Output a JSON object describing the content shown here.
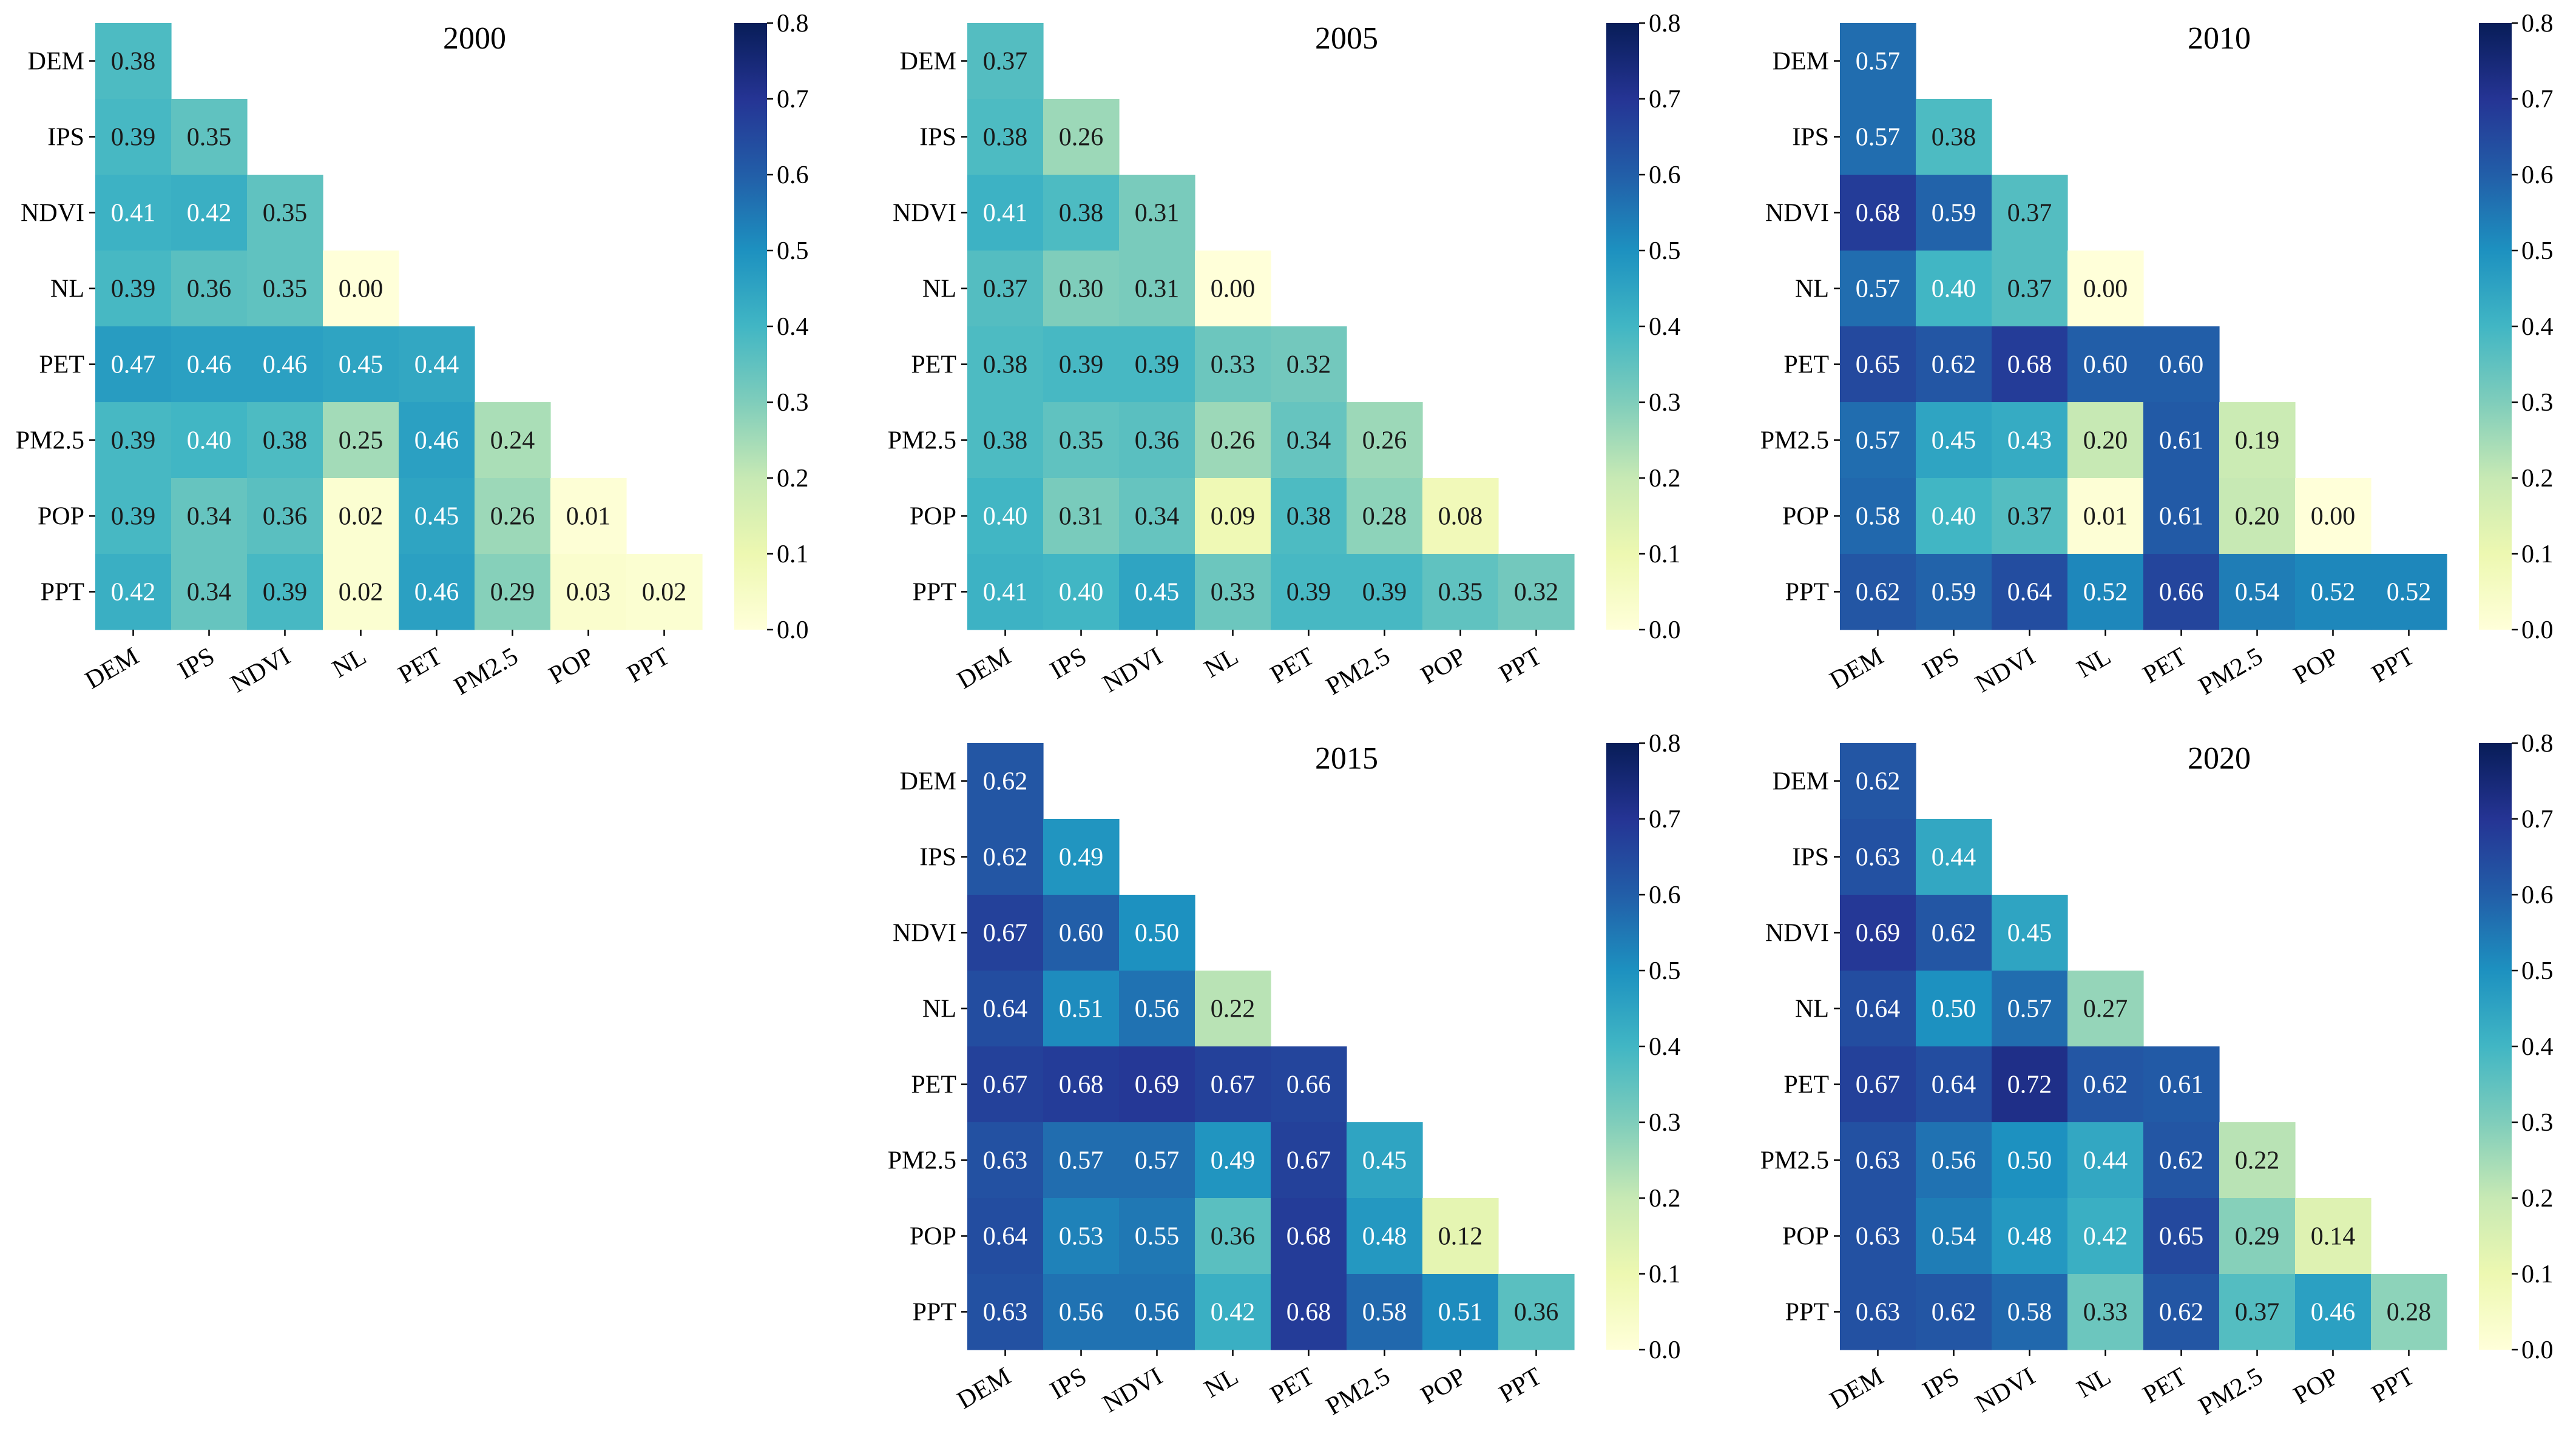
{
  "chart_data": [
    {
      "type": "heatmap",
      "title": "2000",
      "categories": [
        "DEM",
        "IPS",
        "NDVI",
        "NL",
        "PET",
        "PM2.5",
        "POP",
        "PPT"
      ],
      "values": [
        [
          0.38
        ],
        [
          0.39,
          0.35
        ],
        [
          0.41,
          0.42,
          0.35
        ],
        [
          0.39,
          0.36,
          0.35,
          0.0
        ],
        [
          0.47,
          0.46,
          0.46,
          0.45,
          0.44
        ],
        [
          0.39,
          0.4,
          0.38,
          0.25,
          0.46,
          0.24
        ],
        [
          0.39,
          0.34,
          0.36,
          0.02,
          0.45,
          0.26,
          0.01
        ],
        [
          0.42,
          0.34,
          0.39,
          0.02,
          0.46,
          0.29,
          0.03,
          0.02
        ]
      ],
      "colorbar": {
        "min": 0.0,
        "max": 0.8,
        "ticks": [
          "0.0",
          "0.1",
          "0.2",
          "0.3",
          "0.4",
          "0.5",
          "0.6",
          "0.7",
          "0.8"
        ]
      }
    },
    {
      "type": "heatmap",
      "title": "2005",
      "categories": [
        "DEM",
        "IPS",
        "NDVI",
        "NL",
        "PET",
        "PM2.5",
        "POP",
        "PPT"
      ],
      "values": [
        [
          0.37
        ],
        [
          0.38,
          0.26
        ],
        [
          0.41,
          0.38,
          0.31
        ],
        [
          0.37,
          0.3,
          0.31,
          0.0
        ],
        [
          0.38,
          0.39,
          0.39,
          0.33,
          0.32
        ],
        [
          0.38,
          0.35,
          0.36,
          0.26,
          0.34,
          0.26
        ],
        [
          0.4,
          0.31,
          0.34,
          0.09,
          0.38,
          0.28,
          0.08
        ],
        [
          0.41,
          0.4,
          0.45,
          0.33,
          0.39,
          0.39,
          0.35,
          0.32
        ]
      ],
      "colorbar": {
        "min": 0.0,
        "max": 0.8,
        "ticks": [
          "0.0",
          "0.1",
          "0.2",
          "0.3",
          "0.4",
          "0.5",
          "0.6",
          "0.7",
          "0.8"
        ]
      }
    },
    {
      "type": "heatmap",
      "title": "2010",
      "categories": [
        "DEM",
        "IPS",
        "NDVI",
        "NL",
        "PET",
        "PM2.5",
        "POP",
        "PPT"
      ],
      "values": [
        [
          0.57
        ],
        [
          0.57,
          0.38
        ],
        [
          0.68,
          0.59,
          0.37
        ],
        [
          0.57,
          0.4,
          0.37,
          0.0
        ],
        [
          0.65,
          0.62,
          0.68,
          0.6,
          0.6
        ],
        [
          0.57,
          0.45,
          0.43,
          0.2,
          0.61,
          0.19
        ],
        [
          0.58,
          0.4,
          0.37,
          0.01,
          0.61,
          0.2,
          0.0
        ],
        [
          0.62,
          0.59,
          0.64,
          0.52,
          0.66,
          0.54,
          0.52,
          0.52
        ]
      ],
      "colorbar": {
        "min": 0.0,
        "max": 0.8,
        "ticks": [
          "0.0",
          "0.1",
          "0.2",
          "0.3",
          "0.4",
          "0.5",
          "0.6",
          "0.7",
          "0.8"
        ]
      }
    },
    {
      "type": "heatmap",
      "title": "2015",
      "categories": [
        "DEM",
        "IPS",
        "NDVI",
        "NL",
        "PET",
        "PM2.5",
        "POP",
        "PPT"
      ],
      "values": [
        [
          0.62
        ],
        [
          0.62,
          0.49
        ],
        [
          0.67,
          0.6,
          0.5
        ],
        [
          0.64,
          0.51,
          0.56,
          0.22
        ],
        [
          0.67,
          0.68,
          0.69,
          0.67,
          0.66
        ],
        [
          0.63,
          0.57,
          0.57,
          0.49,
          0.67,
          0.45
        ],
        [
          0.64,
          0.53,
          0.55,
          0.36,
          0.68,
          0.48,
          0.12
        ],
        [
          0.63,
          0.56,
          0.56,
          0.42,
          0.68,
          0.58,
          0.51,
          0.36
        ]
      ],
      "colorbar": {
        "min": 0.0,
        "max": 0.8,
        "ticks": [
          "0.0",
          "0.1",
          "0.2",
          "0.3",
          "0.4",
          "0.5",
          "0.6",
          "0.7",
          "0.8"
        ]
      }
    },
    {
      "type": "heatmap",
      "title": "2020",
      "categories": [
        "DEM",
        "IPS",
        "NDVI",
        "NL",
        "PET",
        "PM2.5",
        "POP",
        "PPT"
      ],
      "values": [
        [
          0.62
        ],
        [
          0.63,
          0.44
        ],
        [
          0.69,
          0.62,
          0.45
        ],
        [
          0.64,
          0.5,
          0.57,
          0.27
        ],
        [
          0.67,
          0.64,
          0.72,
          0.62,
          0.61
        ],
        [
          0.63,
          0.56,
          0.5,
          0.44,
          0.62,
          0.22
        ],
        [
          0.63,
          0.54,
          0.48,
          0.42,
          0.65,
          0.29,
          0.14
        ],
        [
          0.63,
          0.62,
          0.58,
          0.33,
          0.62,
          0.37,
          0.46,
          0.28
        ]
      ],
      "colorbar": {
        "min": 0.0,
        "max": 0.8,
        "ticks": [
          "0.0",
          "0.1",
          "0.2",
          "0.3",
          "0.4",
          "0.5",
          "0.6",
          "0.7",
          "0.8"
        ]
      }
    }
  ]
}
